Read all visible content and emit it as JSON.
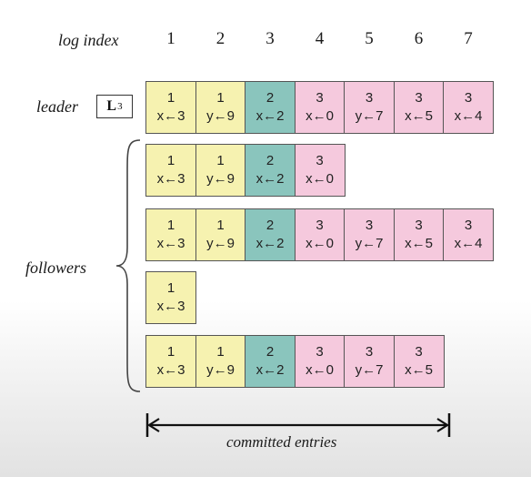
{
  "log_index_label": "log index",
  "indices": [
    "1",
    "2",
    "3",
    "4",
    "5",
    "6",
    "7"
  ],
  "leader_label": "leader",
  "leader_badge": {
    "letter": "L",
    "subscript": "3"
  },
  "followers_label": "followers",
  "committed_label": "committed entries",
  "term_colors": {
    "1": "#f6f2b0",
    "2": "#8ac5bd",
    "3": "#f5c9dd"
  },
  "leader_log": [
    {
      "term": "1",
      "cmd": "x←3"
    },
    {
      "term": "1",
      "cmd": "y←9"
    },
    {
      "term": "2",
      "cmd": "x←2"
    },
    {
      "term": "3",
      "cmd": "x←0"
    },
    {
      "term": "3",
      "cmd": "y←7"
    },
    {
      "term": "3",
      "cmd": "x←5"
    },
    {
      "term": "3",
      "cmd": "x←4"
    }
  ],
  "follower_logs": [
    [
      {
        "term": "1",
        "cmd": "x←3"
      },
      {
        "term": "1",
        "cmd": "y←9"
      },
      {
        "term": "2",
        "cmd": "x←2"
      },
      {
        "term": "3",
        "cmd": "x←0"
      }
    ],
    [
      {
        "term": "1",
        "cmd": "x←3"
      },
      {
        "term": "1",
        "cmd": "y←9"
      },
      {
        "term": "2",
        "cmd": "x←2"
      },
      {
        "term": "3",
        "cmd": "x←0"
      },
      {
        "term": "3",
        "cmd": "y←7"
      },
      {
        "term": "3",
        "cmd": "x←5"
      },
      {
        "term": "3",
        "cmd": "x←4"
      }
    ],
    [
      {
        "term": "1",
        "cmd": "x←3"
      }
    ],
    [
      {
        "term": "1",
        "cmd": "x←3"
      },
      {
        "term": "1",
        "cmd": "y←9"
      },
      {
        "term": "2",
        "cmd": "x←2"
      },
      {
        "term": "3",
        "cmd": "x←0"
      },
      {
        "term": "3",
        "cmd": "y←7"
      },
      {
        "term": "3",
        "cmd": "x←5"
      }
    ]
  ]
}
